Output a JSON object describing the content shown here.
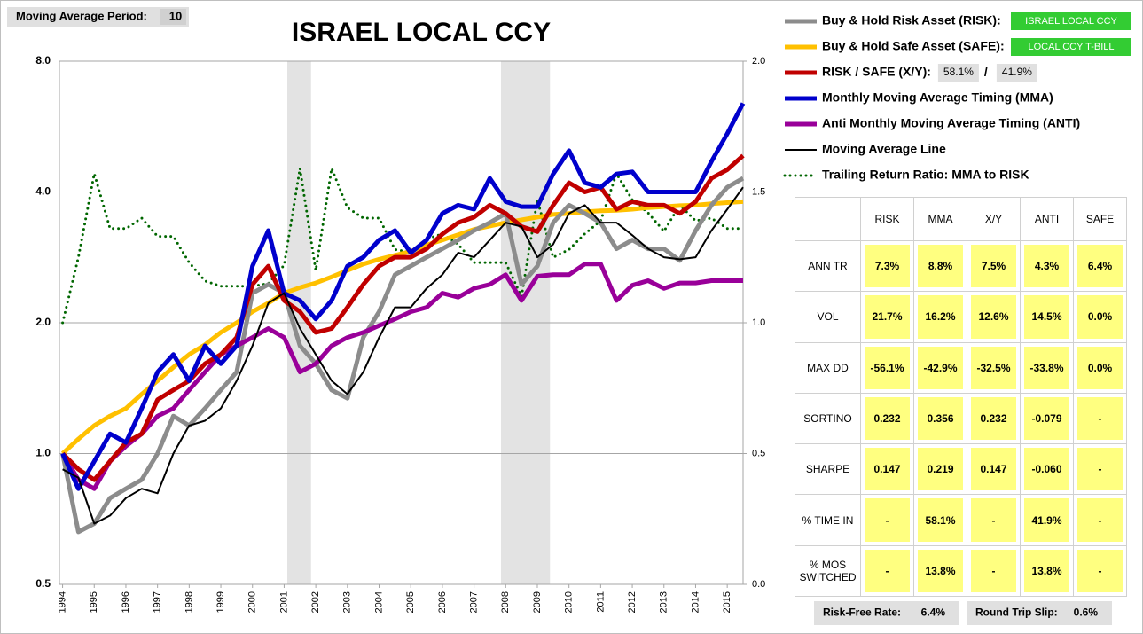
{
  "moving_average": {
    "label": "Moving Average Period:",
    "value": "10"
  },
  "chart_data": {
    "type": "line",
    "title": "ISRAEL LOCAL CCY",
    "log_scale": true,
    "grid": true,
    "x": [
      1994,
      1994.5,
      1995,
      1995.5,
      1996,
      1996.5,
      1997,
      1997.5,
      1998,
      1998.5,
      1999,
      1999.5,
      2000,
      2000.5,
      2001,
      2001.5,
      2002,
      2002.5,
      2003,
      2003.5,
      2004,
      2004.5,
      2005,
      2005.5,
      2006,
      2006.5,
      2007,
      2007.5,
      2008,
      2008.5,
      2009,
      2009.5,
      2010,
      2010.5,
      2011,
      2011.5,
      2012,
      2012.5,
      2013,
      2013.5,
      2014,
      2014.5,
      2015,
      2015.5
    ],
    "xlim": [
      1993.9,
      2015.5
    ],
    "xticks": [
      1994,
      1995,
      1996,
      1997,
      1998,
      1999,
      2000,
      2001,
      2002,
      2003,
      2004,
      2005,
      2006,
      2007,
      2008,
      2009,
      2010,
      2011,
      2012,
      2013,
      2014,
      2015
    ],
    "ylim": [
      0.5,
      8
    ],
    "yticks": [
      0.5,
      {
        "value": 1,
        "label": "1.0"
      },
      {
        "value": 2,
        "label": "2.0"
      },
      {
        "value": 4,
        "label": "4.0"
      },
      {
        "value": 8,
        "label": "8.0"
      }
    ],
    "y2lim": [
      0,
      2
    ],
    "y2ticks": [
      {
        "value": 0,
        "label": "0.0"
      },
      0.5,
      {
        "value": 1,
        "label": "1.0"
      },
      1.5,
      {
        "value": 2,
        "label": "2.0"
      }
    ],
    "shaded_periods": [
      [
        2001.1,
        2001.85
      ],
      [
        2007.85,
        2009.4
      ]
    ],
    "series": [
      {
        "name": "Buy & Hold Risk Asset (RISK):",
        "color": "#8c8c8c",
        "line_width": 5,
        "label_box": "ISRAEL LOCAL CCY",
        "values": [
          1.0,
          0.66,
          0.69,
          0.79,
          0.83,
          0.87,
          1.0,
          1.22,
          1.16,
          1.27,
          1.4,
          1.54,
          2.34,
          2.45,
          2.34,
          1.77,
          1.61,
          1.4,
          1.34,
          1.85,
          2.12,
          2.58,
          2.7,
          2.83,
          2.96,
          3.1,
          3.26,
          3.4,
          3.57,
          2.45,
          2.7,
          3.4,
          3.73,
          3.57,
          3.4,
          2.96,
          3.1,
          2.96,
          2.96,
          2.78,
          3.26,
          3.73,
          4.1,
          4.3
        ]
      },
      {
        "name": "Buy & Hold Safe Asset (SAFE):",
        "color": "#ffc000",
        "line_width": 5,
        "label_box": "LOCAL CCY T-BILL",
        "values": [
          1.0,
          1.08,
          1.16,
          1.22,
          1.27,
          1.37,
          1.47,
          1.58,
          1.69,
          1.78,
          1.9,
          2.0,
          2.12,
          2.22,
          2.34,
          2.41,
          2.47,
          2.55,
          2.64,
          2.73,
          2.8,
          2.86,
          2.92,
          3.02,
          3.1,
          3.19,
          3.28,
          3.34,
          3.4,
          3.45,
          3.5,
          3.55,
          3.57,
          3.6,
          3.62,
          3.63,
          3.65,
          3.68,
          3.7,
          3.72,
          3.73,
          3.76,
          3.78,
          3.8
        ]
      },
      {
        "name": "RISK / SAFE (X/Y):",
        "color": "#c00000",
        "line_width": 5,
        "boxes": [
          "58.1%",
          "41.9%"
        ],
        "box_separator": "/",
        "values": [
          1.0,
          0.92,
          0.87,
          0.96,
          1.06,
          1.11,
          1.33,
          1.4,
          1.47,
          1.61,
          1.69,
          1.85,
          2.45,
          2.7,
          2.25,
          2.12,
          1.9,
          1.94,
          2.17,
          2.45,
          2.7,
          2.83,
          2.83,
          2.96,
          3.2,
          3.4,
          3.5,
          3.73,
          3.57,
          3.33,
          3.24,
          3.73,
          4.2,
          4.0,
          4.1,
          3.65,
          3.8,
          3.73,
          3.73,
          3.57,
          3.8,
          4.3,
          4.5,
          4.85
        ]
      },
      {
        "name": "Monthly Moving Average Timing (MMA)",
        "color": "#0000cc",
        "line_width": 5,
        "values": [
          1.0,
          0.83,
          0.96,
          1.11,
          1.06,
          1.27,
          1.54,
          1.69,
          1.47,
          1.77,
          1.61,
          1.77,
          2.7,
          3.26,
          2.34,
          2.25,
          2.04,
          2.25,
          2.7,
          2.83,
          3.1,
          3.26,
          2.9,
          3.1,
          3.57,
          3.73,
          3.65,
          4.3,
          3.8,
          3.7,
          3.7,
          4.4,
          4.98,
          4.2,
          4.1,
          4.4,
          4.45,
          4.0,
          4.0,
          4.0,
          4.0,
          4.7,
          5.45,
          6.4
        ]
      },
      {
        "name": "Anti Monthly Moving Average Timing (ANTI)",
        "color": "#990099",
        "line_width": 5,
        "values": [
          1.0,
          0.87,
          0.83,
          0.96,
          1.04,
          1.11,
          1.22,
          1.27,
          1.4,
          1.54,
          1.69,
          1.77,
          1.85,
          1.94,
          1.85,
          1.54,
          1.61,
          1.77,
          1.85,
          1.9,
          1.97,
          2.04,
          2.12,
          2.17,
          2.34,
          2.29,
          2.4,
          2.45,
          2.58,
          2.25,
          2.56,
          2.58,
          2.58,
          2.73,
          2.73,
          2.25,
          2.44,
          2.5,
          2.4,
          2.47,
          2.47,
          2.5,
          2.5,
          2.5
        ]
      },
      {
        "name": "Moving Average Line",
        "color": "#000000",
        "line_width": 2,
        "values": [
          0.92,
          0.88,
          0.69,
          0.72,
          0.79,
          0.83,
          0.81,
          1.0,
          1.16,
          1.19,
          1.27,
          1.47,
          1.77,
          2.22,
          2.34,
          1.94,
          1.69,
          1.47,
          1.37,
          1.54,
          1.85,
          2.17,
          2.17,
          2.4,
          2.58,
          2.9,
          2.83,
          3.1,
          3.4,
          3.33,
          2.83,
          3.03,
          3.57,
          3.73,
          3.4,
          3.4,
          3.18,
          2.96,
          2.83,
          2.8,
          2.83,
          3.26,
          3.65,
          4.1
        ]
      },
      {
        "name": "Trailing Return Ratio: MMA to RISK",
        "color": "#006600",
        "line_width": 3,
        "dotted": true,
        "axis": "y2",
        "values": [
          1.0,
          1.25,
          1.57,
          1.36,
          1.36,
          1.4,
          1.33,
          1.33,
          1.23,
          1.16,
          1.14,
          1.14,
          1.14,
          1.15,
          1.22,
          1.59,
          1.2,
          1.59,
          1.44,
          1.4,
          1.4,
          1.28,
          1.27,
          1.32,
          1.34,
          1.3,
          1.23,
          1.23,
          1.23,
          1.1,
          1.47,
          1.25,
          1.28,
          1.34,
          1.39,
          1.57,
          1.47,
          1.42,
          1.35,
          1.45,
          1.39,
          1.4,
          1.36,
          1.36
        ]
      }
    ]
  },
  "stats_table": {
    "columns": [
      "RISK",
      "MMA",
      "X/Y",
      "ANTI",
      "SAFE"
    ],
    "rows": [
      {
        "label": "ANN TR",
        "cells": [
          "7.3%",
          "8.8%",
          "7.5%",
          "4.3%",
          "6.4%"
        ]
      },
      {
        "label": "VOL",
        "cells": [
          "21.7%",
          "16.2%",
          "12.6%",
          "14.5%",
          "0.0%"
        ]
      },
      {
        "label": "MAX DD",
        "cells": [
          "-56.1%",
          "-42.9%",
          "-32.5%",
          "-33.8%",
          "0.0%"
        ]
      },
      {
        "label": "SORTINO",
        "cells": [
          "0.232",
          "0.356",
          "0.232",
          "-0.079",
          "-"
        ]
      },
      {
        "label": "SHARPE",
        "cells": [
          "0.147",
          "0.219",
          "0.147",
          "-0.060",
          "-"
        ]
      },
      {
        "label": "% TIME IN",
        "cells": [
          "-",
          "58.1%",
          "-",
          "41.9%",
          "-"
        ]
      },
      {
        "label": "% MOS SWITCHED",
        "cells": [
          "-",
          "13.8%",
          "-",
          "13.8%",
          "-"
        ]
      }
    ]
  },
  "footer": [
    {
      "label": "Risk-Free Rate:",
      "value": "6.4%"
    },
    {
      "label": "Round Trip Slip:",
      "value": "0.6%"
    }
  ]
}
